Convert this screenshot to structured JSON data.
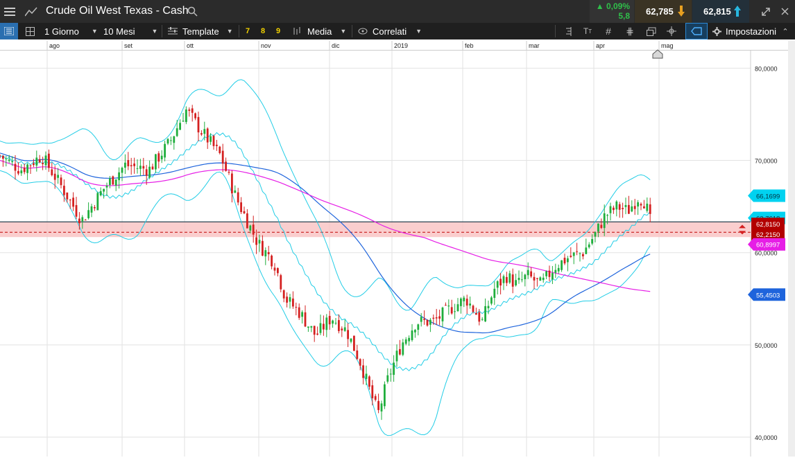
{
  "header": {
    "title": "Crude Oil West Texas - Cash",
    "change_pct": "▲ 0,09%",
    "change_abs": "5,8",
    "bid": "62,785",
    "ask": "62,815"
  },
  "toolbar": {
    "interval": "1 Giorno",
    "range": "10 Mesi",
    "template": "Template",
    "num7": "7",
    "num8": "8",
    "num9": "9",
    "media": "Media",
    "correlati": "Correlati",
    "impostazioni": "Impostazioni"
  },
  "chart_data": {
    "type": "candlestick",
    "instrument": "Crude Oil West Texas - Cash",
    "x_labels": [
      "ago",
      "set",
      "ott",
      "nov",
      "dic",
      "2019",
      "feb",
      "mar",
      "apr",
      "mag"
    ],
    "y_ticks": [
      "80,0000",
      "70,0000",
      "60,0000",
      "50,0000",
      "40,0000"
    ],
    "ylim": [
      38.2,
      85.2
    ],
    "price_tags": [
      {
        "value": "66,1699",
        "color": "#00d2f0"
      },
      {
        "value": "63,7618",
        "color": "#00d2f0"
      },
      {
        "value": "62,8150",
        "color": "#b30000"
      },
      {
        "value": "62,2150",
        "color": "#b30000"
      },
      {
        "value": "60,8997",
        "color": "#e61ee6"
      },
      {
        "value": "55,4503",
        "color": "#1e64dc"
      }
    ],
    "grid": true
  }
}
